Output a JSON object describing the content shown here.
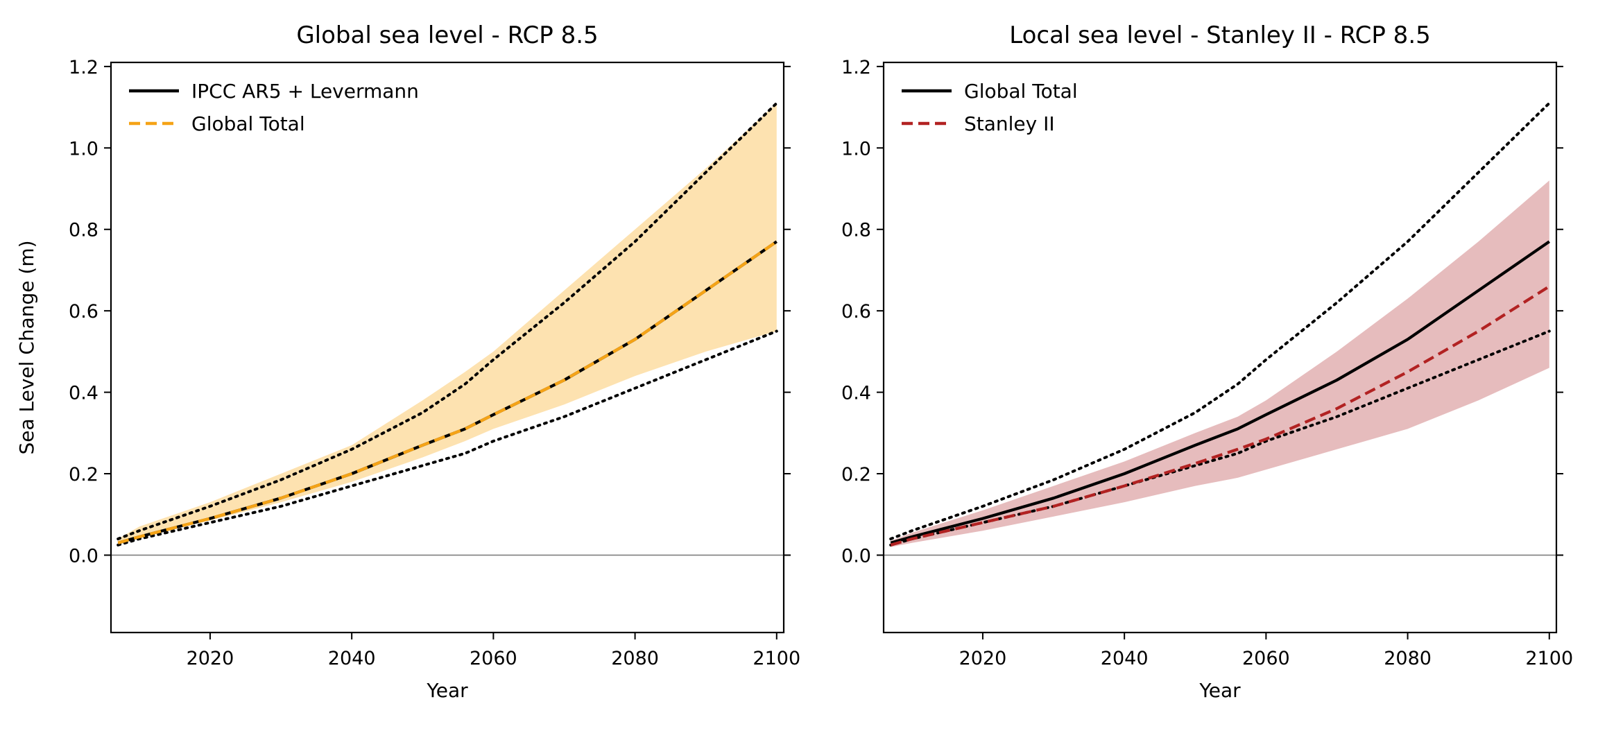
{
  "chart_data": [
    {
      "type": "line",
      "title": "Global sea level - RCP 8.5",
      "xlabel": "Year",
      "ylabel": "Sea Level Change (m)",
      "xlim": [
        2006,
        2101
      ],
      "ylim": [
        -0.19,
        1.21
      ],
      "xticks": [
        2020,
        2040,
        2060,
        2080,
        2100
      ],
      "yticks": [
        0.0,
        0.2,
        0.4,
        0.6,
        0.8,
        1.0,
        1.2
      ],
      "ytick_labels": [
        "0.0",
        "0.2",
        "0.4",
        "0.6",
        "0.8",
        "1.0",
        "1.2"
      ],
      "grid": false,
      "legend_position": "top-left",
      "zero_line": true,
      "x": [
        2007,
        2010,
        2020,
        2030,
        2040,
        2050,
        2056,
        2060,
        2070,
        2080,
        2090,
        2100
      ],
      "band": {
        "color": "#fde2b0",
        "lower": [
          0.025,
          0.045,
          0.085,
          0.13,
          0.18,
          0.24,
          0.28,
          0.31,
          0.37,
          0.44,
          0.5,
          0.55
        ],
        "upper": [
          0.04,
          0.07,
          0.13,
          0.2,
          0.27,
          0.38,
          0.45,
          0.5,
          0.65,
          0.8,
          0.95,
          1.11
        ]
      },
      "series": [
        {
          "name": "IPCC AR5 + Levermann",
          "color": "#000000",
          "style": "solid",
          "values": [
            0.03,
            0.045,
            0.09,
            0.14,
            0.2,
            0.27,
            0.31,
            0.345,
            0.43,
            0.53,
            0.65,
            0.77
          ]
        },
        {
          "name": "Global Total",
          "color": "#f5a316",
          "style": "dashed",
          "values": [
            0.03,
            0.045,
            0.09,
            0.14,
            0.2,
            0.27,
            0.31,
            0.345,
            0.43,
            0.53,
            0.65,
            0.77
          ]
        },
        {
          "color": "#000000",
          "style": "dotted",
          "values": [
            0.04,
            0.06,
            0.12,
            0.185,
            0.26,
            0.35,
            0.42,
            0.48,
            0.62,
            0.77,
            0.94,
            1.11
          ]
        },
        {
          "color": "#000000",
          "style": "dotted",
          "values": [
            0.025,
            0.04,
            0.08,
            0.12,
            0.17,
            0.22,
            0.25,
            0.28,
            0.34,
            0.41,
            0.48,
            0.55
          ]
        }
      ]
    },
    {
      "type": "line",
      "title": "Local sea level - Stanley II - RCP 8.5",
      "xlabel": "Year",
      "ylabel": "",
      "xlim": [
        2006,
        2101
      ],
      "ylim": [
        -0.19,
        1.21
      ],
      "xticks": [
        2020,
        2040,
        2060,
        2080,
        2100
      ],
      "yticks": [
        0.0,
        0.2,
        0.4,
        0.6,
        0.8,
        1.0,
        1.2
      ],
      "ytick_labels": [
        "0.0",
        "0.2",
        "0.4",
        "0.6",
        "0.8",
        "1.0",
        "1.2"
      ],
      "grid": false,
      "legend_position": "top-left",
      "zero_line": true,
      "x": [
        2007,
        2010,
        2020,
        2030,
        2040,
        2050,
        2056,
        2060,
        2070,
        2080,
        2090,
        2100
      ],
      "band": {
        "color": "#e6bcbd",
        "lower": [
          0.02,
          0.03,
          0.06,
          0.095,
          0.13,
          0.17,
          0.19,
          0.21,
          0.26,
          0.31,
          0.38,
          0.46
        ],
        "upper": [
          0.035,
          0.055,
          0.11,
          0.17,
          0.23,
          0.3,
          0.34,
          0.38,
          0.5,
          0.63,
          0.77,
          0.92
        ]
      },
      "series": [
        {
          "name": "Global Total",
          "color": "#000000",
          "style": "solid",
          "values": [
            0.03,
            0.045,
            0.09,
            0.14,
            0.2,
            0.27,
            0.31,
            0.345,
            0.43,
            0.53,
            0.65,
            0.77
          ]
        },
        {
          "name": "Stanley II",
          "color": "#b22222",
          "style": "dashed",
          "values": [
            0.025,
            0.04,
            0.08,
            0.12,
            0.17,
            0.225,
            0.26,
            0.285,
            0.36,
            0.45,
            0.55,
            0.66
          ]
        },
        {
          "color": "#000000",
          "style": "dotted",
          "values": [
            0.04,
            0.06,
            0.12,
            0.185,
            0.26,
            0.35,
            0.42,
            0.48,
            0.62,
            0.77,
            0.94,
            1.11
          ]
        },
        {
          "color": "#000000",
          "style": "dotted",
          "values": [
            0.025,
            0.04,
            0.08,
            0.12,
            0.17,
            0.22,
            0.25,
            0.28,
            0.34,
            0.41,
            0.48,
            0.55
          ]
        }
      ]
    }
  ]
}
